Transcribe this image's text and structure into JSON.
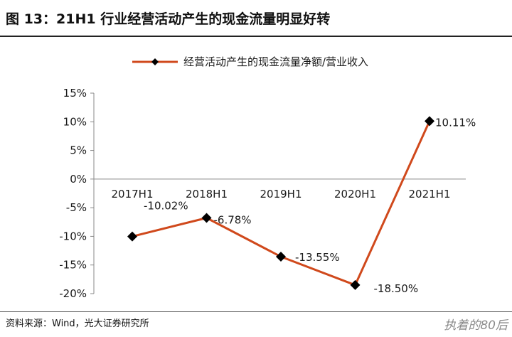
{
  "header": {
    "title": "图 13：21H1 行业经营活动产生的现金流量明显好转"
  },
  "footer": {
    "source": "资料来源：Wind，光大证券研究所",
    "watermark": "执着的80后"
  },
  "chart_data": {
    "type": "line",
    "categories": [
      "2017H1",
      "2018H1",
      "2019H1",
      "2020H1",
      "2021H1"
    ],
    "series": [
      {
        "name": "经营活动产生的现金流量净额/营业收入",
        "values": [
          -10.02,
          -6.78,
          -13.55,
          -18.5,
          10.11
        ],
        "labels": [
          "-10.02%",
          "-6.78%",
          "-13.55%",
          "-18.50%",
          "10.11%"
        ]
      }
    ],
    "yticks": [
      "15%",
      "10%",
      "5%",
      "0%",
      "-5%",
      "-10%",
      "-15%",
      "-20%"
    ],
    "ylim": [
      -20,
      15
    ],
    "legend_position": "top",
    "grid": false,
    "colors": {
      "line": "#d0491c",
      "marker": "#000000",
      "axis": "#888888"
    }
  }
}
